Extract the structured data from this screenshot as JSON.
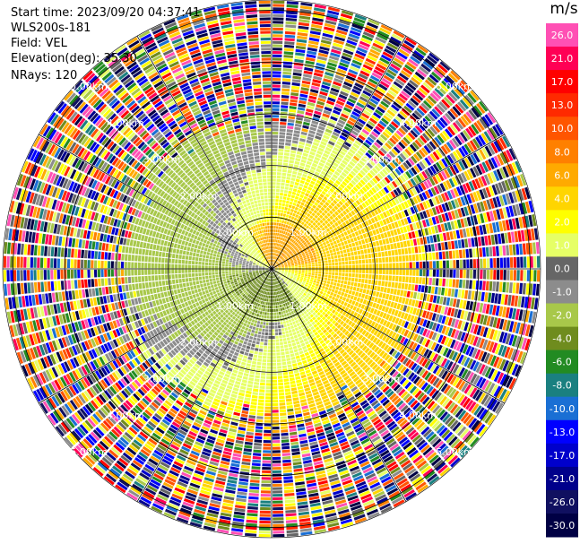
{
  "header": {
    "start_time": "Start time: 2023/09/20 04:37:41",
    "instrument": "WLS200s-181",
    "field": "Field: VEL",
    "elevation": "Elevation(deg): 35.30",
    "nrays": "NRays: 120"
  },
  "chart_data": {
    "type": "ppi",
    "field": "VEL",
    "units": "m/s",
    "nrays": 120,
    "elevation_deg": 35.3,
    "max_range_km": 5.2,
    "range_ring_labels": [
      "1.00km",
      "2.00km",
      "3.00km",
      "4.00km",
      "5.00km"
    ],
    "range_rings_km": [
      1,
      2,
      3,
      4,
      5
    ],
    "spoke_angles_deg": [
      0,
      30,
      60,
      90,
      120,
      150,
      180,
      210,
      240,
      270,
      300,
      330
    ],
    "colorbar": {
      "title": "m/s",
      "tick_labels": [
        "26.0",
        "21.0",
        "17.0",
        "13.0",
        "10.0",
        "8.0",
        "6.0",
        "4.0",
        "2.0",
        "1.0",
        "0.0",
        "-1.0",
        "-2.0",
        "-4.0",
        "-6.0",
        "-8.0",
        "-10.0",
        "-13.0",
        "-17.0",
        "-21.0",
        "-26.0",
        "-30.0"
      ],
      "colors": [
        "#ff50b4",
        "#ff0055",
        "#ff0000",
        "#ff2a00",
        "#ff5500",
        "#ff8000",
        "#ffaa00",
        "#ffd500",
        "#ffff00",
        "#e6ff66",
        "#666666",
        "#8c8c8c",
        "#a8c84a",
        "#6f8c1e",
        "#228b22",
        "#1a8080",
        "#1a6fd4",
        "#0000ff",
        "#0000cc",
        "#00008b",
        "#101060",
        "#000044"
      ]
    },
    "wind_pattern": {
      "positive_toward_deg": 20,
      "negative_toward_deg": 200,
      "clean_range_km": 2.6,
      "noise_start_km": 3.2
    }
  }
}
